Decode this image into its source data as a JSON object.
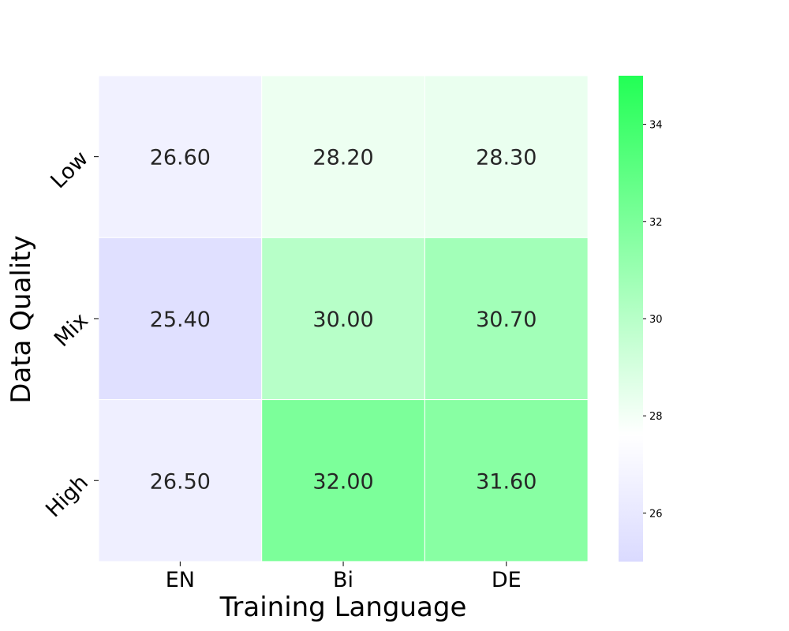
{
  "chart_data": {
    "type": "heatmap",
    "xlabel": "Training Language",
    "ylabel": "Data Quality",
    "x_categories": [
      "EN",
      "Bi",
      "DE"
    ],
    "y_categories": [
      "Low",
      "Mix",
      "High"
    ],
    "values": [
      [
        26.6,
        28.2,
        28.3
      ],
      [
        25.4,
        30.0,
        30.7
      ],
      [
        26.5,
        32.0,
        31.6
      ]
    ],
    "value_format_decimals": 2,
    "colorbar": {
      "min": 25.0,
      "max": 35.0,
      "ticks": [
        26,
        28,
        30,
        32,
        34
      ],
      "colormap": [
        {
          "value": 25.0,
          "color": "#dadaff"
        },
        {
          "value": 27.6,
          "color": "#ffffff"
        },
        {
          "value": 35.0,
          "color": "#22ff55"
        }
      ]
    },
    "grid_line_color": "#ffffff"
  }
}
